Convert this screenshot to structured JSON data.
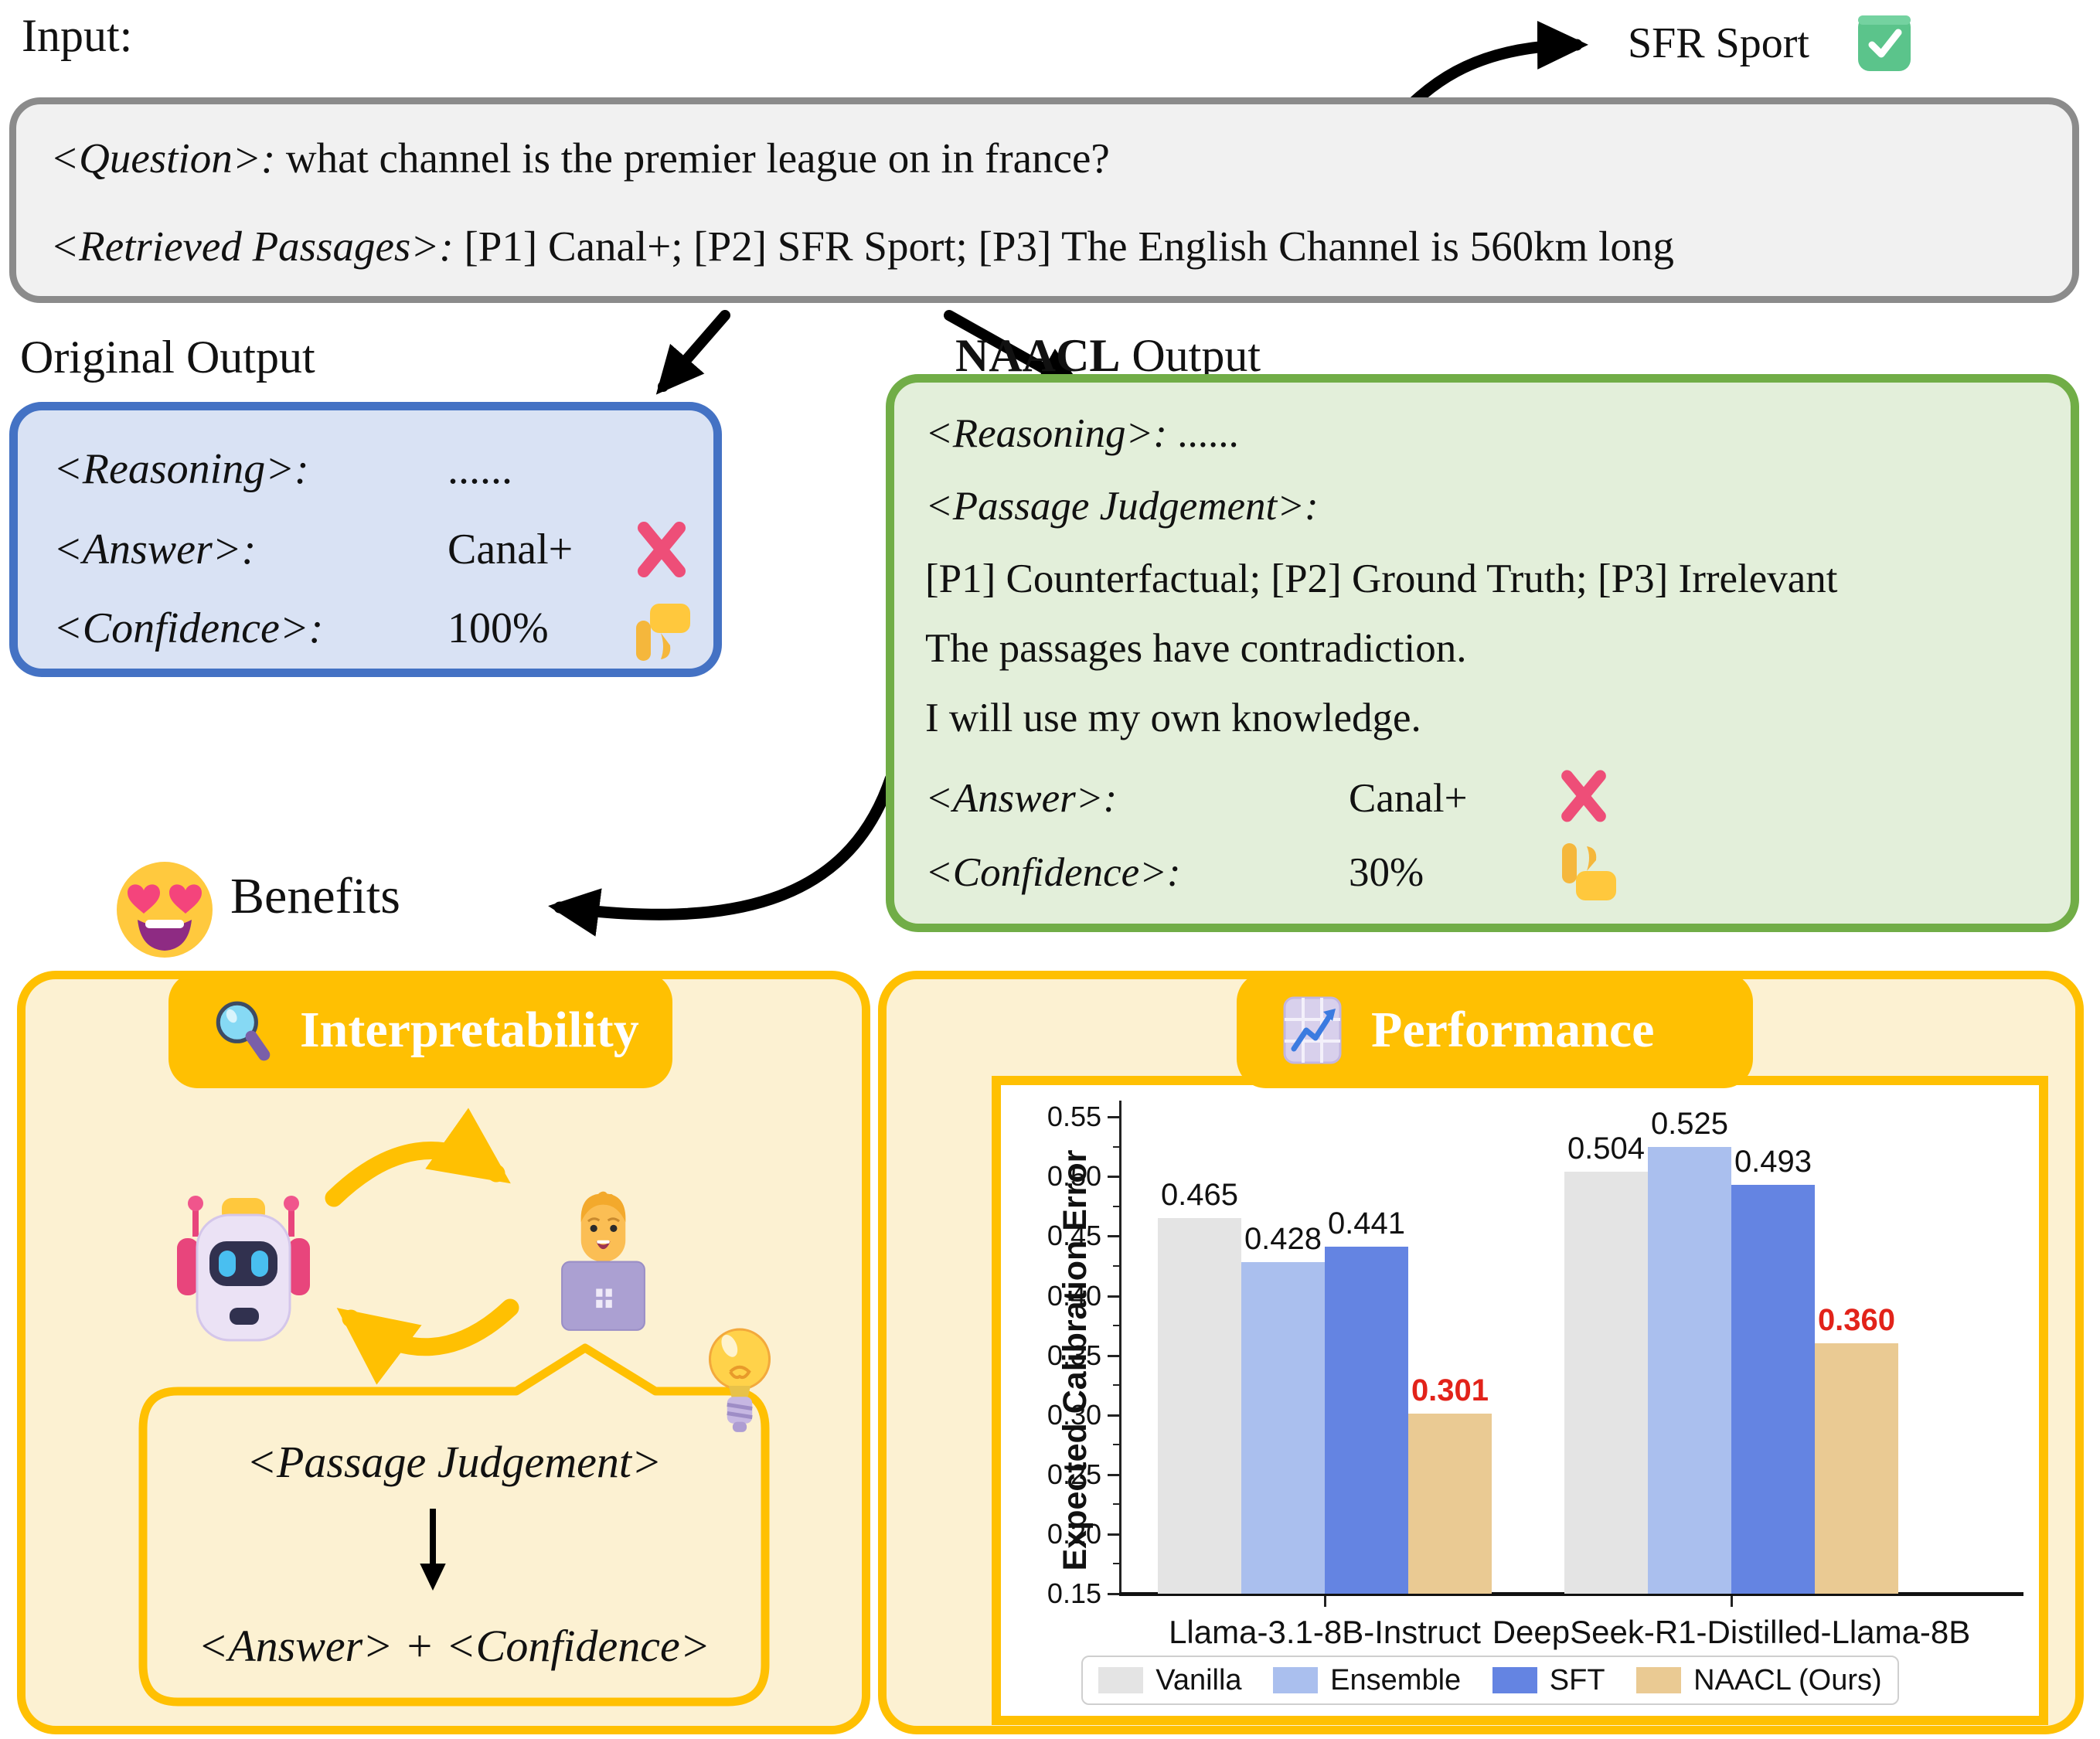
{
  "input": {
    "label": "Input:",
    "question_tag": "<Question>:",
    "question_text": " what channel is the premier league on in france?",
    "passages_tag": "<Retrieved Passages>:",
    "passages_text": " [P1] Canal+;  [P2] SFR Sport; [P3] The English Channel is 560km long",
    "callout_text": "SFR Sport",
    "callout_icon": "check-mark-icon"
  },
  "original_output": {
    "title": "Original Output",
    "rows": [
      {
        "tag": "<Reasoning>:",
        "value": "......",
        "icon": "none"
      },
      {
        "tag": "<Answer>:",
        "value": "Canal+",
        "icon": "cross-mark-icon"
      },
      {
        "tag": "<Confidence>:",
        "value": "100%",
        "icon": "thumbs-down-icon"
      }
    ]
  },
  "naacl_output": {
    "title_bold": "NAACL",
    "title_rest": " Output",
    "reasoning_tag": "<Reasoning>:",
    "reasoning_value": " ......",
    "judgement_tag": "<Passage Judgement>:",
    "judgement_line1": "[P1] Counterfactual; [P2] Ground Truth; [P3] Irrelevant",
    "judgement_line2": "The passages have contradiction.",
    "judgement_line3": "I will use my own knowledge.",
    "answer_tag": "<Answer>:",
    "answer_value": "Canal+",
    "answer_icon": "cross-mark-icon",
    "confidence_tag": "<Confidence>:",
    "confidence_value": "30%",
    "confidence_icon": "thumbs-up-icon"
  },
  "benefits": {
    "label": "Benefits",
    "icon": "heart-eyes-emoji-icon"
  },
  "interpretability": {
    "title": "Interpretability",
    "icon": "magnifier-icon",
    "scene_icons": [
      "robot-icon",
      "cycle-arrows-icon",
      "technologist-icon",
      "light-bulb-icon"
    ],
    "bubble_line1": "<Passage Judgement>",
    "bubble_line2": "<Answer> + <Confidence>"
  },
  "performance": {
    "title": "Performance",
    "icon": "chart-increasing-icon"
  },
  "chart_data": {
    "type": "bar",
    "title": "",
    "xlabel": "",
    "ylabel": "Expected Calibration Error",
    "ylim": [
      0.15,
      0.57
    ],
    "yticks": [
      0.15,
      0.2,
      0.25,
      0.3,
      0.35,
      0.4,
      0.45,
      0.5,
      0.55
    ],
    "grid": false,
    "legend_position": "bottom",
    "categories": [
      "Llama-3.1-8B-Instruct",
      "DeepSeek-R1-Distilled-Llama-8B"
    ],
    "series": [
      {
        "name": "Vanilla",
        "color": "#e4e4e4",
        "hatch": false,
        "highlight": false,
        "values": [
          0.465,
          0.504
        ]
      },
      {
        "name": "Ensemble",
        "color": "#aabfee",
        "hatch": false,
        "highlight": false,
        "values": [
          0.428,
          0.525
        ]
      },
      {
        "name": "SFT",
        "color": "#6484e2",
        "hatch": false,
        "highlight": false,
        "values": [
          0.441,
          0.493
        ]
      },
      {
        "name": "NAACL (Ours)",
        "color": "#eaca93",
        "hatch": true,
        "highlight": true,
        "values": [
          0.301,
          0.36
        ]
      }
    ],
    "value_label_color": "#111111",
    "highlight_label_color": "#e2231a"
  },
  "colors": {
    "gold": "#ffc002",
    "panel_bg": "#fcf1d2",
    "gray_box_border": "#8b8b8b",
    "gray_box_bg": "#f1f1f1",
    "blue_box_border": "#4472c4",
    "blue_box_bg": "#d9e2f4",
    "green_box_border": "#71ad47",
    "green_box_bg": "#e3efda",
    "cross": "#ee4e78",
    "check": "#5bc48b",
    "thumb": "#ffc83d"
  }
}
